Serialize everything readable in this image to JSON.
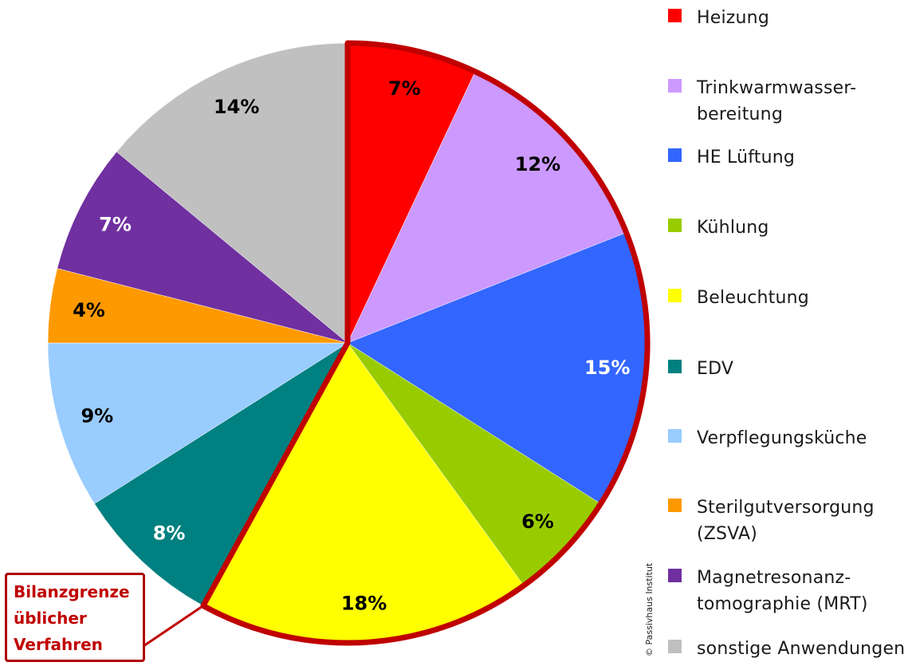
{
  "chart_data": {
    "type": "pie",
    "start_angle_deg": 0,
    "direction": "clockwise",
    "slices": [
      {
        "label": "Heizung",
        "value": 7,
        "value_label": "7%",
        "color": "#ff0000",
        "label_color": "#000000"
      },
      {
        "label": "Trinkwarmwasser-\nbereitung",
        "value": 12,
        "value_label": "12%",
        "color": "#cc99ff",
        "label_color": "#000000"
      },
      {
        "label": "HE Lüftung",
        "value": 15,
        "value_label": "15%",
        "color": "#3366ff",
        "label_color": "#ffffff"
      },
      {
        "label": "Kühlung",
        "value": 6,
        "value_label": "6%",
        "color": "#99cc00",
        "label_color": "#000000"
      },
      {
        "label": "Beleuchtung",
        "value": 18,
        "value_label": "18%",
        "color": "#ffff00",
        "label_color": "#000000"
      },
      {
        "label": "EDV",
        "value": 8,
        "value_label": "8%",
        "color": "#008080",
        "label_color": "#ffffff"
      },
      {
        "label": "Verpflegungsküche",
        "value": 9,
        "value_label": "9%",
        "color": "#99ccff",
        "label_color": "#000000"
      },
      {
        "label": "Sterilgutversorgung\n(ZSVA)",
        "value": 4,
        "value_label": "4%",
        "color": "#ff9900",
        "label_color": "#000000"
      },
      {
        "label": "Magnetresonanz-\ntomographie (MRT)",
        "value": 7,
        "value_label": "7%",
        "color": "#7030a0",
        "label_color": "#ffffff"
      },
      {
        "label": "sonstige Anwendungen",
        "value": 14,
        "value_label": "14%",
        "color": "#c0c0c0",
        "label_color": "#000000"
      }
    ],
    "boundary_outline": {
      "slices": [
        0,
        1,
        2,
        3,
        4
      ],
      "color": "#c00000"
    },
    "legend_position": "right"
  },
  "callout": {
    "text": "Bilanzgrenze\nüblicher\nVerfahren",
    "color": "#c00000"
  },
  "copyright": "© Passivhaus Institut"
}
